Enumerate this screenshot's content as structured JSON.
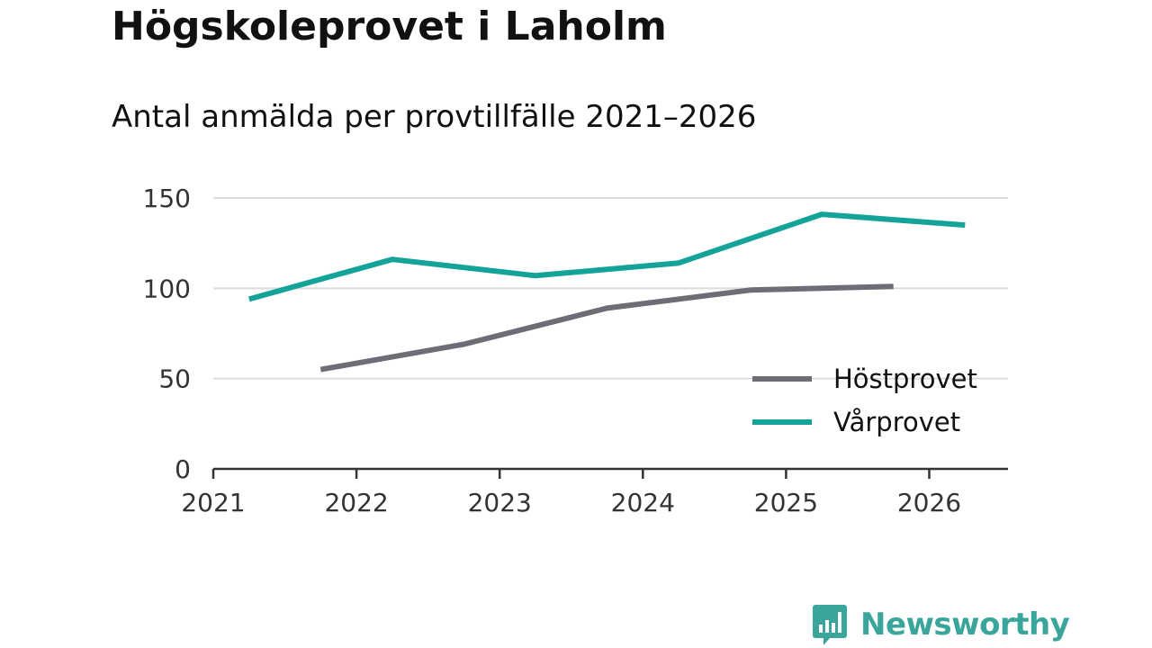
{
  "header": {
    "title": "Högskoleprovet i Laholm",
    "subtitle": "Antal anmälda per provtillfälle 2021–2026"
  },
  "brand": {
    "name": "Newsworthy",
    "color": "#3aa59a",
    "icon": "newsworthy-bar-chart-icon"
  },
  "chart_data": {
    "type": "line",
    "title": "Högskoleprovet i Laholm",
    "subtitle": "Antal anmälda per provtillfälle 2021–2026",
    "xlabel": "",
    "ylabel": "",
    "x_ticks": [
      "2021",
      "2022",
      "2023",
      "2024",
      "2025",
      "2026"
    ],
    "y_ticks": [
      "0",
      "50",
      "100",
      "150"
    ],
    "xlim": [
      2021,
      2026.55
    ],
    "ylim": [
      0,
      150
    ],
    "grid": true,
    "legend_position": "bottom-right",
    "series": [
      {
        "name": "Höstprovet",
        "color": "#6e6d75",
        "points": [
          [
            2021.75,
            55
          ],
          [
            2022.75,
            69
          ],
          [
            2023.75,
            89
          ],
          [
            2024.75,
            99
          ],
          [
            2025.75,
            101
          ]
        ]
      },
      {
        "name": "Vårprovet",
        "color": "#13a398",
        "points": [
          [
            2021.25,
            94
          ],
          [
            2022.25,
            116
          ],
          [
            2023.25,
            107
          ],
          [
            2024.25,
            114
          ],
          [
            2025.25,
            141
          ],
          [
            2026.25,
            135
          ]
        ]
      }
    ]
  }
}
